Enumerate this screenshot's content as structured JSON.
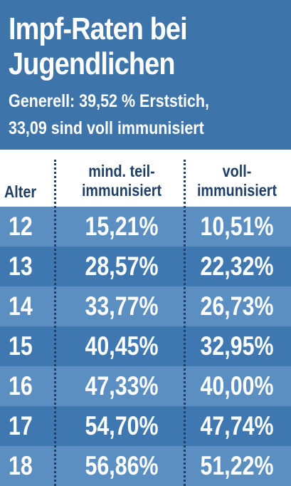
{
  "header": {
    "title_lines": [
      "Impf-Raten bei",
      "Jugendlichen"
    ],
    "subtitle_lines": [
      "Generell: 39,52 % Erststich,",
      "33,09 sind voll immunisiert"
    ]
  },
  "table": {
    "columns": [
      "Alter",
      "mind. teil-\nimmunisiert",
      "voll-\nimmunisiert"
    ],
    "rows": [
      {
        "age": "12",
        "partial": "15,21%",
        "full": "10,51%"
      },
      {
        "age": "13",
        "partial": "28,57%",
        "full": "22,32%"
      },
      {
        "age": "14",
        "partial": "33,77%",
        "full": "26,73%"
      },
      {
        "age": "15",
        "partial": "40,45%",
        "full": "32,95%"
      },
      {
        "age": "16",
        "partial": "47,33%",
        "full": "40,00%"
      },
      {
        "age": "17",
        "partial": "54,70%",
        "full": "47,74%"
      },
      {
        "age": "18",
        "partial": "56,86%",
        "full": "51,22%"
      }
    ]
  },
  "colors": {
    "header_bg": "#3d74aa",
    "row_light": "#5b8ec1",
    "row_dark": "#3f78b0",
    "header_text": "#1f3f66"
  },
  "chart_data": {
    "type": "table",
    "title": "Impf-Raten bei Jugendlichen",
    "subtitle": "Generell: 39,52 % Erststich, 33,09 sind voll immunisiert",
    "categories": [
      "12",
      "13",
      "14",
      "15",
      "16",
      "17",
      "18"
    ],
    "series": [
      {
        "name": "mind. teil-immunisiert",
        "values": [
          15.21,
          28.57,
          33.77,
          40.45,
          47.33,
          54.7,
          56.86
        ]
      },
      {
        "name": "voll-immunisiert",
        "values": [
          10.51,
          22.32,
          26.73,
          32.95,
          40.0,
          47.74,
          51.22
        ]
      }
    ]
  }
}
